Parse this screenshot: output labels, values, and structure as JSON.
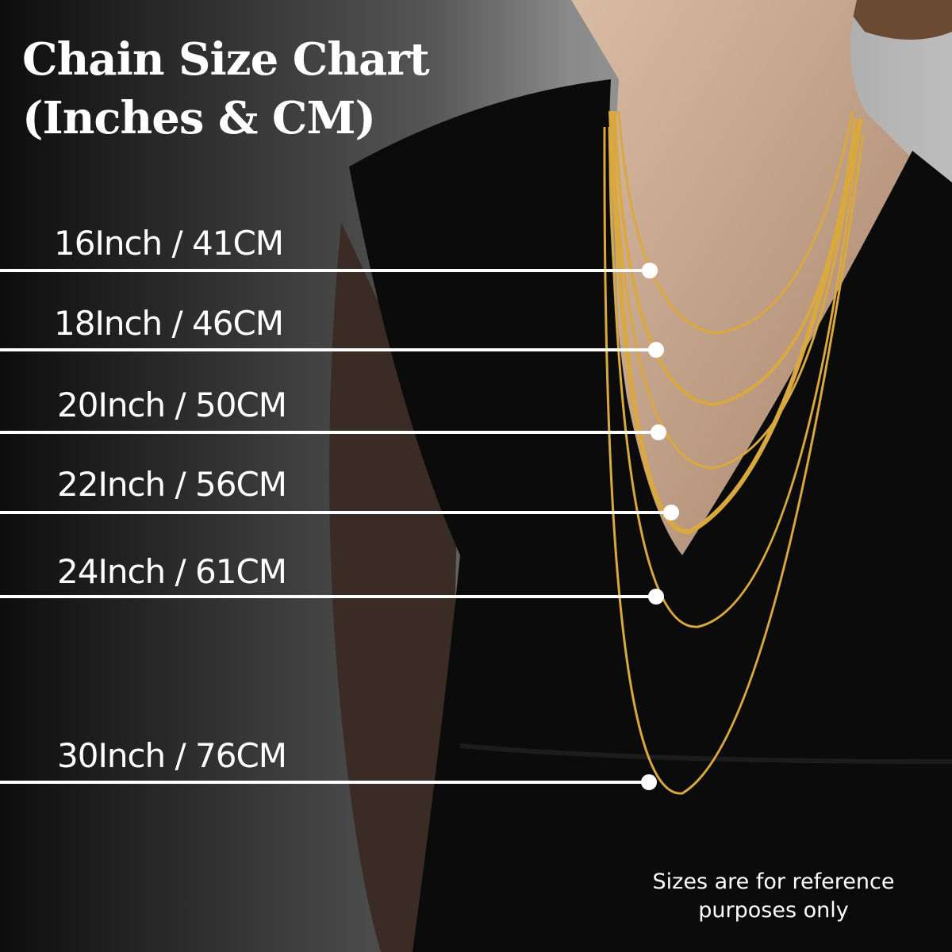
{
  "title": {
    "line1": "Chain Size Chart",
    "line2": "(Inches & CM)"
  },
  "sizes": [
    {
      "label": "16Inch / 41CM",
      "inches": 16,
      "cm": 41
    },
    {
      "label": "18Inch / 46CM",
      "inches": 18,
      "cm": 46
    },
    {
      "label": "20Inch / 50CM",
      "inches": 20,
      "cm": 50
    },
    {
      "label": "22Inch / 56CM",
      "inches": 22,
      "cm": 56
    },
    {
      "label": "24Inch / 61CM",
      "inches": 24,
      "cm": 61
    },
    {
      "label": "30Inch / 76CM",
      "inches": 30,
      "cm": 76
    }
  ],
  "note": {
    "line1": "Sizes are for reference",
    "line2": "purposes only"
  },
  "colors": {
    "chain_gold": "#d9a93f",
    "dress": "#0b0b0b",
    "skin": "#c9a78c",
    "marker": "#ffffff"
  }
}
